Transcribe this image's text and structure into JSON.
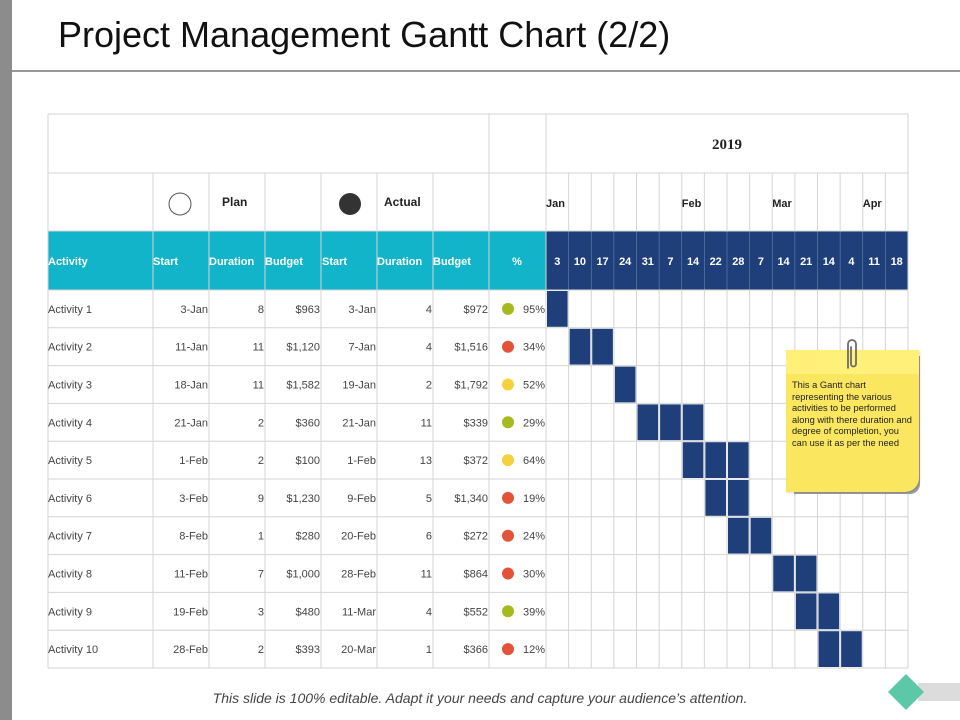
{
  "title": "Project Management Gantt Chart (2/2)",
  "footer": "This slide is 100% editable. Adapt it your needs and capture your audience’s attention.",
  "sticky_note": "This a Gantt chart representing the various activities to be performed along with there duration and degree of completion, you can use it as per the need",
  "colors": {
    "header_teal": "#12b4c9",
    "week_navy": "#1f3f7a",
    "bar_navy": "#1f3f7a",
    "grid": "#d4d4d4",
    "status_green": "#a6b91e",
    "status_red": "#e2533a",
    "status_yellow": "#f5d23d"
  },
  "chart_data": {
    "type": "table",
    "year": "2019",
    "legend": {
      "plan_label": "Plan",
      "plan_icon": "hollow-circle-icon",
      "actual_label": "Actual",
      "actual_icon": "filled-circle-icon"
    },
    "columns": [
      "Activity",
      "Start",
      "Duration",
      "Budget",
      "Start",
      "Duration",
      "Budget",
      "%"
    ],
    "months": [
      {
        "label": "Jan",
        "week_index": 0
      },
      {
        "label": "Feb",
        "week_index": 6
      },
      {
        "label": "Mar",
        "week_index": 10
      },
      {
        "label": "Apr",
        "week_index": 14
      }
    ],
    "weeks": [
      "3",
      "10",
      "17",
      "24",
      "31",
      "7",
      "14",
      "22",
      "28",
      "7",
      "14",
      "21",
      "14",
      "4",
      "11",
      "18"
    ],
    "rows": [
      {
        "activity": "Activity 1",
        "plan_start": "3-Jan",
        "plan_duration": "8",
        "plan_budget": "$963",
        "actual_start": "3-Jan",
        "actual_duration": "4",
        "actual_budget": "$972",
        "percent": "95%",
        "status": "green",
        "bar_weeks": [
          0,
          0
        ]
      },
      {
        "activity": "Activity 2",
        "plan_start": "11-Jan",
        "plan_duration": "11",
        "plan_budget": "$1,120",
        "actual_start": "7-Jan",
        "actual_duration": "4",
        "actual_budget": "$1,516",
        "percent": "34%",
        "status": "red",
        "bar_weeks": [
          1,
          2
        ]
      },
      {
        "activity": "Activity 3",
        "plan_start": "18-Jan",
        "plan_duration": "11",
        "plan_budget": "$1,582",
        "actual_start": "19-Jan",
        "actual_duration": "2",
        "actual_budget": "$1,792",
        "percent": "52%",
        "status": "yellow",
        "bar_weeks": [
          3,
          3
        ]
      },
      {
        "activity": "Activity 4",
        "plan_start": "21-Jan",
        "plan_duration": "2",
        "plan_budget": "$360",
        "actual_start": "21-Jan",
        "actual_duration": "11",
        "actual_budget": "$339",
        "percent": "29%",
        "status": "green",
        "bar_weeks": [
          4,
          6
        ]
      },
      {
        "activity": "Activity 5",
        "plan_start": "1-Feb",
        "plan_duration": "2",
        "plan_budget": "$100",
        "actual_start": "1-Feb",
        "actual_duration": "13",
        "actual_budget": "$372",
        "percent": "64%",
        "status": "yellow",
        "bar_weeks": [
          6,
          8
        ]
      },
      {
        "activity": "Activity 6",
        "plan_start": "3-Feb",
        "plan_duration": "9",
        "plan_budget": "$1,230",
        "actual_start": "9-Feb",
        "actual_duration": "5",
        "actual_budget": "$1,340",
        "percent": "19%",
        "status": "red",
        "bar_weeks": [
          7,
          8
        ]
      },
      {
        "activity": "Activity 7",
        "plan_start": "8-Feb",
        "plan_duration": "1",
        "plan_budget": "$280",
        "actual_start": "20-Feb",
        "actual_duration": "6",
        "actual_budget": "$272",
        "percent": "24%",
        "status": "red",
        "bar_weeks": [
          8,
          9
        ]
      },
      {
        "activity": "Activity 8",
        "plan_start": "11-Feb",
        "plan_duration": "7",
        "plan_budget": "$1,000",
        "actual_start": "28-Feb",
        "actual_duration": "11",
        "actual_budget": "$864",
        "percent": "30%",
        "status": "red",
        "bar_weeks": [
          10,
          11
        ]
      },
      {
        "activity": "Activity 9",
        "plan_start": "19-Feb",
        "plan_duration": "3",
        "plan_budget": "$480",
        "actual_start": "11-Mar",
        "actual_duration": "4",
        "actual_budget": "$552",
        "percent": "39%",
        "status": "green",
        "bar_weeks": [
          11,
          12
        ]
      },
      {
        "activity": "Activity 10",
        "plan_start": "28-Feb",
        "plan_duration": "2",
        "plan_budget": "$393",
        "actual_start": "20-Mar",
        "actual_duration": "1",
        "actual_budget": "$366",
        "percent": "12%",
        "status": "red",
        "bar_weeks": [
          12,
          13
        ]
      }
    ]
  }
}
